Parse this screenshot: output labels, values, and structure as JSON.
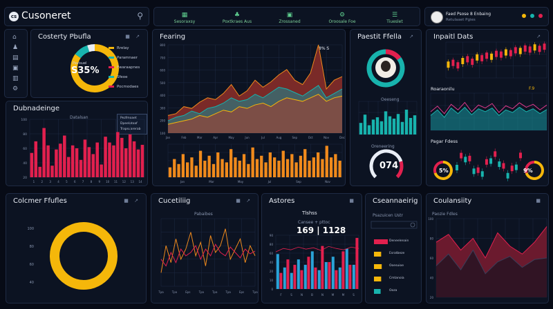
{
  "header": {
    "logo_text": "Cusoneret",
    "logo_badge": "cs",
    "nav": [
      {
        "icon": "grid-icon",
        "label": "Sesoraxsy"
      },
      {
        "icon": "tree-icon",
        "label": "Poxtkraes Aus"
      },
      {
        "icon": "box-icon",
        "label": "Zrossaned"
      },
      {
        "icon": "gear-icon",
        "label": "Oroosale Foe"
      },
      {
        "icon": "sliders-icon",
        "label": "Tiueslet"
      }
    ],
    "profile_line1": "Faed Psose 8 Enbaing",
    "profile_line2": "Retulaaet Pgies"
  },
  "colors": {
    "bg": "#070b16",
    "panel": "#0c1322",
    "yellow": "#f5b70a",
    "teal": "#18b3ad",
    "red": "#e2204e",
    "orange": "#f08a1c"
  },
  "sidebar": {
    "icons": [
      "home-icon",
      "users-icon",
      "chart-icon",
      "image-icon",
      "document-icon",
      "settings-icon"
    ]
  },
  "panels": {
    "customer_profile_small": {
      "title": "Costerty Pbufla",
      "center_small": "Pavisuel",
      "center_value": "S35%",
      "legend": [
        "Rrelay",
        "Paramnaer",
        "Fwaraapnes",
        "Sfeoe",
        "Pocmodaes"
      ]
    },
    "distributions": {
      "title": "Dubnadeinge",
      "subtitle": "Datalsan",
      "legend": [
        "Pezfmoaet",
        "Dpeelatoaf",
        "Trapsuarerab"
      ],
      "y_ticks": [
        "100",
        "80",
        "60",
        "40",
        "20"
      ],
      "x_ticks": [
        "1",
        "2",
        "3",
        "4",
        "5",
        "6",
        "7",
        "8",
        "9",
        "10",
        "11",
        "12",
        "13",
        "14"
      ]
    },
    "feeding": {
      "title": "Fearing",
      "annotation": "8% S",
      "y_ticks": [
        "800",
        "700",
        "600",
        "500",
        "400",
        "300",
        "200",
        "100"
      ],
      "x_ticks": [
        "Jan",
        "Feb",
        "Mar",
        "Apr",
        "May",
        "Jun",
        "Jul",
        "Aug",
        "Sep",
        "Oct",
        "Nov",
        "Dec"
      ],
      "x_ticks2": [
        "Jan",
        "Mar",
        "May",
        "Jul",
        "Sep",
        "Nov"
      ]
    },
    "product_profile": {
      "title": "Paestit Ffella",
      "bars_label": "Oeeseng",
      "gauge_label": "Oreneering",
      "gauge_value": "074"
    },
    "insight_data": {
      "title": "Inpaitl Dats",
      "mid_label": "Roaraonilu",
      "mid_meta": "F.9",
      "bottom_label": "Pagar Fdess",
      "left_donut": "5%",
      "right_donut": "9%"
    },
    "customer_profile_large": {
      "title": "Colcmer Ffufles",
      "y_ticks": [
        "100",
        "80",
        "60",
        "40"
      ]
    },
    "curating": {
      "title": "Cucetiliig",
      "subtitle": "Pabaibes",
      "x_ticks": [
        "Tpa",
        "Tpa",
        "Eps",
        "Tpa",
        "Tpa",
        "Tpa",
        "Eps",
        "Tpa"
      ]
    },
    "actions": {
      "title": "Astores",
      "subtitle": "Tlshss",
      "subnote": "Cansee + pttoc",
      "value": "169 | 1128",
      "y_ticks": [
        "90",
        "80",
        "60",
        "40",
        "20",
        "10",
        "0"
      ],
      "x_ticks": [
        "F",
        "S",
        "N",
        "B",
        "N",
        "M",
        "M",
        "S"
      ]
    },
    "conversion": {
      "title": "Cseannaeirig",
      "subtitle": "Psazuicen Ustr",
      "legend": [
        "Deneelenain",
        "Esratbeze",
        "Ooesuioe",
        "Cmtanoia",
        "Ooza"
      ]
    },
    "conformity": {
      "title": "Coulansiity",
      "subtitle": "Paozie Fdles",
      "y_ticks": [
        "100",
        "80",
        "60",
        "40",
        "20"
      ]
    }
  },
  "chart_data": [
    {
      "type": "pie",
      "id": "customer_profile_small",
      "slices": [
        {
          "name": "Rrelay",
          "value": 85
        },
        {
          "name": "Paramnaer",
          "value": 10
        },
        {
          "name": "Fwaraapnes",
          "value": 5
        }
      ]
    },
    {
      "type": "bar",
      "id": "distributions",
      "values": [
        42,
        62,
        18,
        85,
        55,
        20,
        48,
        58,
        72,
        35,
        55,
        50,
        30,
        65,
        52,
        40,
        60,
        22,
        70,
        60,
        55,
        78,
        68,
        50,
        74,
        62,
        48,
        56
      ],
      "ylim": [
        0,
        100
      ]
    },
    {
      "type": "area",
      "id": "feeding_area",
      "series": [
        {
          "name": "a",
          "values": [
            20,
            22,
            30,
            28,
            35,
            40,
            38,
            45,
            55,
            42,
            48,
            60,
            52,
            58,
            66,
            72,
            60,
            55,
            68,
            100,
            50,
            60,
            64
          ]
        },
        {
          "name": "b",
          "values": [
            14,
            18,
            20,
            25,
            22,
            28,
            30,
            34,
            40,
            36,
            38,
            44,
            40,
            46,
            52,
            50,
            46,
            42,
            48,
            54,
            40,
            45,
            50
          ]
        },
        {
          "name": "c",
          "values": [
            10,
            12,
            14,
            16,
            20,
            18,
            22,
            26,
            24,
            30,
            28,
            32,
            34,
            30,
            36,
            40,
            38,
            36,
            40,
            44,
            36,
            40,
            42
          ]
        }
      ],
      "ylim": [
        0,
        100
      ]
    },
    {
      "type": "bar",
      "id": "feeding_bars",
      "values": [
        30,
        55,
        40,
        70,
        45,
        60,
        35,
        80,
        50,
        65,
        40,
        75,
        55,
        45,
        85,
        60,
        50,
        70,
        40,
        90,
        55,
        65,
        45,
        75,
        60,
        50,
        80,
        55,
        70,
        45,
        65,
        85,
        50,
        60,
        75,
        55,
        95,
        60,
        70,
        50
      ],
      "ylim": [
        0,
        100
      ]
    },
    {
      "type": "pie",
      "id": "product_profile_ring",
      "slices": [
        {
          "name": "red",
          "value": 15
        },
        {
          "name": "teal",
          "value": 85
        }
      ]
    },
    {
      "type": "bar",
      "id": "product_profile_bars",
      "values": [
        35,
        60,
        28,
        45,
        52,
        40,
        70,
        55,
        48,
        62,
        38,
        75,
        50,
        58
      ],
      "ylim": [
        0,
        100
      ]
    },
    {
      "type": "line",
      "id": "insight_candles",
      "values": [
        40,
        45,
        38,
        50,
        55,
        48,
        60,
        58,
        65,
        62,
        70,
        68,
        74,
        72,
        80,
        78,
        85,
        82,
        88,
        84,
        90
      ]
    },
    {
      "type": "area",
      "id": "insight_wave",
      "series": [
        {
          "name": "a",
          "values": [
            50,
            65,
            45,
            70,
            55,
            75,
            50,
            68,
            60,
            72,
            48,
            66,
            58,
            74,
            62,
            70,
            55,
            68
          ]
        },
        {
          "name": "b",
          "values": [
            40,
            55,
            35,
            60,
            45,
            62,
            42,
            58,
            50,
            60,
            40,
            55,
            48,
            62,
            50,
            58,
            45,
            56
          ]
        }
      ]
    },
    {
      "type": "pie",
      "id": "customer_profile_large_ring",
      "slices": [
        {
          "name": "yellow",
          "value": 100
        }
      ]
    },
    {
      "type": "line",
      "id": "curating",
      "series": [
        {
          "name": "a",
          "values": [
            20,
            60,
            35,
            70,
            40,
            55,
            80,
            45,
            65,
            30,
            75,
            50,
            60,
            85,
            40,
            55,
            70,
            35,
            60,
            45
          ]
        },
        {
          "name": "b",
          "values": [
            40,
            30,
            50,
            35,
            55,
            45,
            50,
            60,
            40,
            55,
            45,
            62,
            50,
            45,
            58,
            50,
            42,
            55,
            48,
            52
          ]
        }
      ]
    },
    {
      "type": "bar",
      "id": "actions",
      "series": [
        {
          "name": "teal",
          "values": [
            65,
            40,
            30,
            55,
            45,
            70,
            35,
            50,
            60,
            40,
            75,
            45
          ]
        },
        {
          "name": "red",
          "values": [
            30,
            55,
            45,
            35,
            60,
            40,
            80,
            50,
            35,
            70,
            45,
            95
          ]
        }
      ],
      "ylim": [
        0,
        100
      ]
    },
    {
      "type": "bar",
      "id": "conversion",
      "categories": [
        "Deneelenain",
        "Esratbeze",
        "Ooesuioe",
        "Cmtanoia",
        "Ooza"
      ],
      "values": [
        100,
        40,
        45,
        40,
        35
      ]
    },
    {
      "type": "area",
      "id": "conformity",
      "series": [
        {
          "name": "a",
          "values": [
            70,
            80,
            60,
            75,
            50,
            82,
            65,
            55,
            70,
            90
          ]
        },
        {
          "name": "b",
          "values": [
            40,
            55,
            35,
            60,
            30,
            45,
            52,
            38,
            48,
            50
          ]
        }
      ],
      "ylim": [
        0,
        100
      ]
    }
  ]
}
